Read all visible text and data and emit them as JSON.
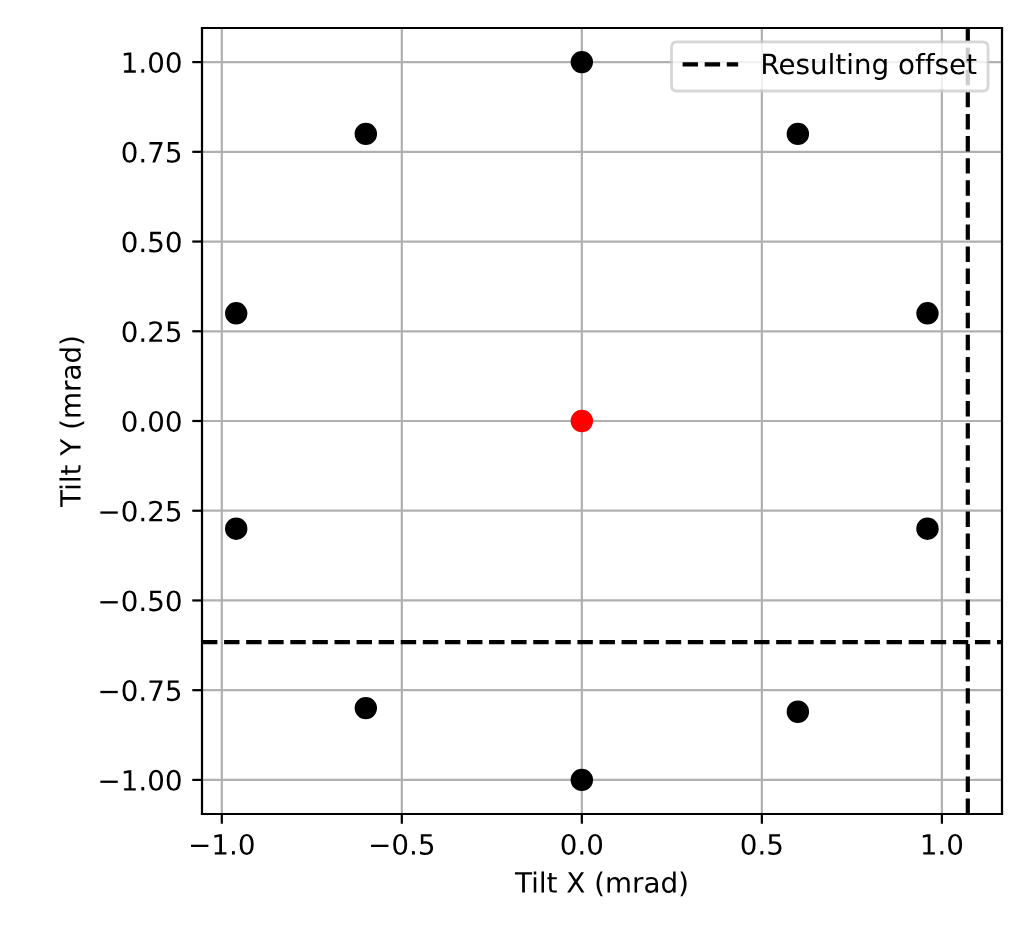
{
  "chart_data": {
    "type": "scatter",
    "xlabel": "Tilt X (mrad)",
    "ylabel": "Tilt Y (mrad)",
    "xlim": [
      -1.055,
      1.167
    ],
    "ylim": [
      -1.095,
      1.095
    ],
    "xticks": [
      {
        "value": -1.0,
        "label": "−1.0"
      },
      {
        "value": -0.5,
        "label": "−0.5"
      },
      {
        "value": 0.0,
        "label": "0.0"
      },
      {
        "value": 0.5,
        "label": "0.5"
      },
      {
        "value": 1.0,
        "label": "1.0"
      }
    ],
    "yticks": [
      {
        "value": -1.0,
        "label": "−1.00"
      },
      {
        "value": -0.75,
        "label": "−0.75"
      },
      {
        "value": -0.5,
        "label": "−0.50"
      },
      {
        "value": -0.25,
        "label": "−0.25"
      },
      {
        "value": 0.0,
        "label": "0.00"
      },
      {
        "value": 0.25,
        "label": "0.25"
      },
      {
        "value": 0.5,
        "label": "0.50"
      },
      {
        "value": 0.75,
        "label": "0.75"
      },
      {
        "value": 1.0,
        "label": "1.00"
      }
    ],
    "grid": true,
    "marker": "circle",
    "legend": "top right",
    "series": [
      {
        "color": "#000000",
        "x": [
          0.0,
          0.6,
          0.96,
          0.96,
          0.6,
          0.0,
          -0.6,
          -0.96,
          -0.96,
          -0.6
        ],
        "values": [
          1.0,
          0.8,
          0.3,
          -0.3,
          -0.81,
          -1.0,
          -0.8,
          -0.3,
          0.3,
          0.8
        ]
      },
      {
        "color": "#ff0000",
        "x": [
          0.0
        ],
        "values": [
          0.0
        ]
      }
    ],
    "ref_lines": [
      {
        "axis": "x",
        "value": 1.072,
        "label": "Resulting offset",
        "color": "#000000",
        "line_style": "dashed"
      },
      {
        "axis": "y",
        "value": -0.616,
        "label": null,
        "color": "#000000",
        "line_style": "dashed"
      }
    ]
  }
}
